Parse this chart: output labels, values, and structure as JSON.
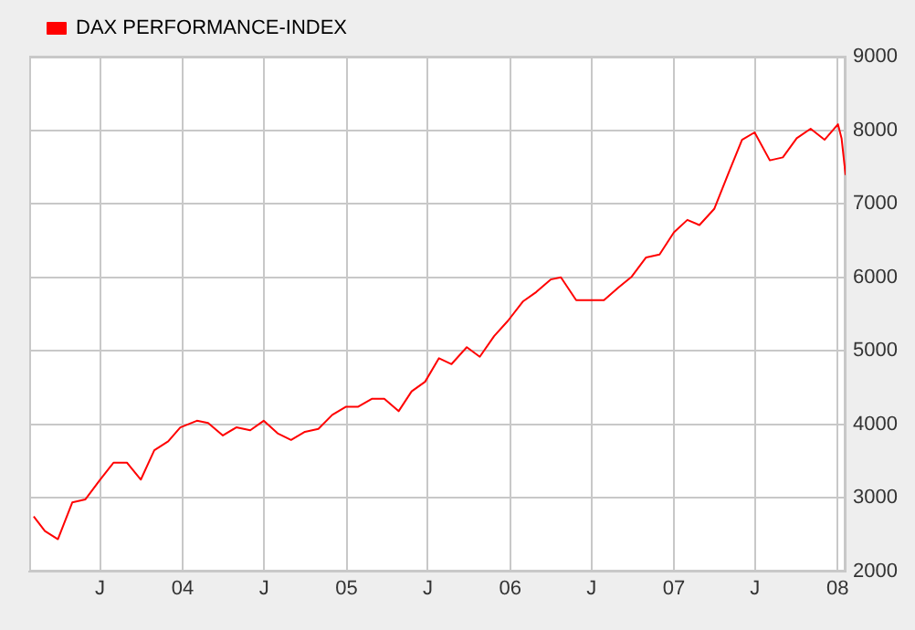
{
  "chart_data": {
    "type": "line",
    "legend": "top left",
    "grid": true,
    "marker": "none",
    "line_style": "solid",
    "x": [
      "2003-02-03",
      "2003-02-28",
      "2003-03-29",
      "2003-04-30",
      "2003-05-29",
      "2003-06-30",
      "2003-07-31",
      "2003-08-30",
      "2003-09-30",
      "2003-10-30",
      "2003-11-30",
      "2003-12-27",
      "2004-02-02",
      "2004-02-27",
      "2004-03-31",
      "2004-04-30",
      "2004-05-31",
      "2004-06-30",
      "2004-07-31",
      "2004-08-30",
      "2004-09-30",
      "2004-10-30",
      "2004-11-30",
      "2004-12-30",
      "2005-01-26",
      "2005-02-27",
      "2005-03-26",
      "2005-04-27",
      "2005-05-26",
      "2005-06-25",
      "2005-07-26",
      "2005-08-23",
      "2005-09-26",
      "2005-10-25",
      "2005-11-26",
      "2005-12-27",
      "2006-01-29",
      "2006-02-28",
      "2006-04-01",
      "2006-04-24",
      "2006-05-28",
      "2006-07-29",
      "2006-08-30",
      "2006-09-29",
      "2006-10-31",
      "2006-11-30",
      "2007-01-01",
      "2007-01-31",
      "2007-02-27",
      "2007-04-01",
      "2007-05-03",
      "2007-06-02",
      "2007-06-30",
      "2007-08-03",
      "2007-09-01",
      "2007-10-02",
      "2007-11-02",
      "2007-12-03",
      "2008-01-02",
      "2008-01-10",
      "2008-01-19"
    ],
    "series": [
      {
        "name": "DAX PERFORMANCE-INDEX",
        "color": "#ff0000",
        "values": [
          2750,
          2550,
          2440,
          2940,
          2980,
          3240,
          3480,
          3480,
          3250,
          3650,
          3770,
          3960,
          4050,
          4020,
          3850,
          3960,
          3920,
          4050,
          3880,
          3790,
          3900,
          3940,
          4130,
          4240,
          4240,
          4350,
          4350,
          4180,
          4450,
          4580,
          4900,
          4820,
          5050,
          4920,
          5200,
          5410,
          5670,
          5800,
          5970,
          6000,
          5690,
          5690,
          5860,
          6010,
          6270,
          6310,
          6610,
          6780,
          6710,
          6930,
          7420,
          7870,
          7970,
          7590,
          7630,
          7890,
          8020,
          7870,
          8080,
          7890,
          7390
        ]
      }
    ],
    "xlim": [
      "2003-01-24",
      "2008-01-19"
    ],
    "xticks": [
      {
        "value": "2003-07",
        "label": "J"
      },
      {
        "value": "2004-01",
        "label": "04"
      },
      {
        "value": "2004-07",
        "label": "J"
      },
      {
        "value": "2005-01",
        "label": "05"
      },
      {
        "value": "2005-07",
        "label": "J"
      },
      {
        "value": "2006-01",
        "label": "06"
      },
      {
        "value": "2006-07",
        "label": "J"
      },
      {
        "value": "2007-01",
        "label": "07"
      },
      {
        "value": "2007-07",
        "label": "J"
      },
      {
        "value": "2008-01",
        "label": "08"
      }
    ],
    "ylim": [
      2000,
      9000
    ],
    "yticks": [
      2000,
      3000,
      4000,
      5000,
      6000,
      7000,
      8000,
      9000
    ]
  }
}
